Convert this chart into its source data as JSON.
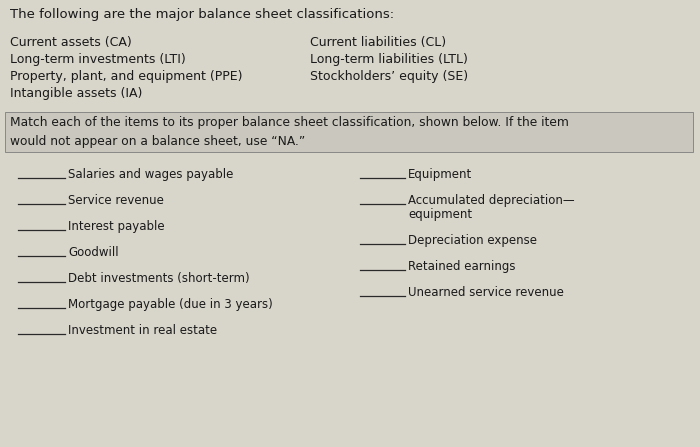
{
  "bg_color": "#d8d5cb",
  "title_line": "The following are the major balance sheet classifications:",
  "left_classifications": [
    "Current assets (CA)",
    "Long-term investments (LTI)",
    "Property, plant, and equipment (PPE)",
    "Intangible assets (IA)"
  ],
  "right_classifications": [
    "Current liabilities (CL)",
    "Long-term liabilities (LTL)",
    "Stockholders’ equity (SE)"
  ],
  "instruction": "Match each of the items to its proper balance sheet classification, shown below. If the item\nwould not appear on a balance sheet, use “NA.”",
  "left_items": [
    "Salaries and wages payable",
    "Service revenue",
    "Interest payable",
    "Goodwill",
    "Debt investments (short-term)",
    "Mortgage payable (due in 3 years)",
    "Investment in real estate"
  ],
  "right_items_line1": [
    "Equipment",
    "Accumulated depreciation—",
    "equipment",
    "Depreciation expense",
    "Retained earnings",
    "Unearned service revenue"
  ],
  "right_item_has_blank": [
    true,
    true,
    false,
    true,
    true,
    true
  ],
  "font_size_title": 9.5,
  "font_size_class": 9.0,
  "font_size_instr": 8.8,
  "font_size_items": 8.5,
  "text_color": "#1a1a1a",
  "line_color": "#2a2a2a",
  "instr_box_color": "#cac8be"
}
